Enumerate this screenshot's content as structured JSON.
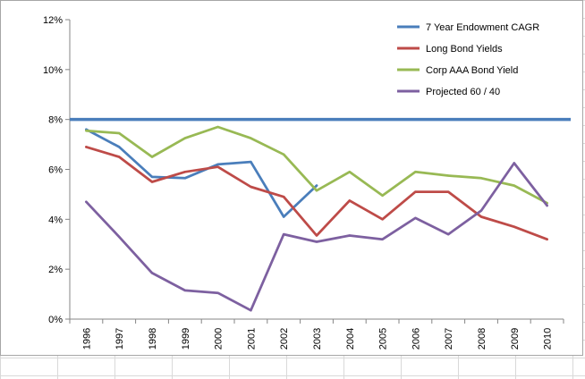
{
  "chart_data": {
    "type": "line",
    "title": "",
    "xlabel": "",
    "ylabel": "",
    "categories": [
      "1996",
      "1997",
      "1998",
      "1999",
      "2000",
      "2001",
      "2002",
      "2003",
      "2004",
      "2005",
      "2006",
      "2007",
      "2008",
      "2009",
      "2010"
    ],
    "y_ticks": [
      "0%",
      "2%",
      "4%",
      "6%",
      "8%",
      "10%",
      "12%"
    ],
    "ylim": [
      0,
      12
    ],
    "grid": false,
    "legend_position": "top-right",
    "series": [
      {
        "name": "7 Year Endowment CAGR",
        "color": "#4a7ebb",
        "values": [
          7.6,
          6.9,
          5.7,
          5.65,
          6.2,
          6.3,
          4.1,
          5.35,
          null,
          null,
          null,
          null,
          null,
          null,
          null
        ]
      },
      {
        "name": "Long Bond Yields",
        "color": "#be4b48",
        "values": [
          6.9,
          6.5,
          5.5,
          5.9,
          6.1,
          5.3,
          4.9,
          3.35,
          4.75,
          4.0,
          5.1,
          5.1,
          4.1,
          3.7,
          3.2
        ]
      },
      {
        "name": "Corp AAA Bond Yield",
        "color": "#98b954",
        "values": [
          7.55,
          7.45,
          6.5,
          7.25,
          7.7,
          7.25,
          6.6,
          5.15,
          5.9,
          4.95,
          5.9,
          5.75,
          5.65,
          5.35,
          4.65
        ]
      },
      {
        "name": "Projected 60 / 40",
        "color": "#7d60a0",
        "values": [
          4.7,
          3.3,
          1.85,
          1.15,
          1.05,
          0.35,
          3.4,
          3.1,
          3.35,
          3.2,
          4.05,
          3.4,
          4.35,
          6.25,
          4.55
        ]
      }
    ],
    "reference_line": {
      "series": "7 Year Endowment CAGR",
      "value": 8.0
    }
  }
}
